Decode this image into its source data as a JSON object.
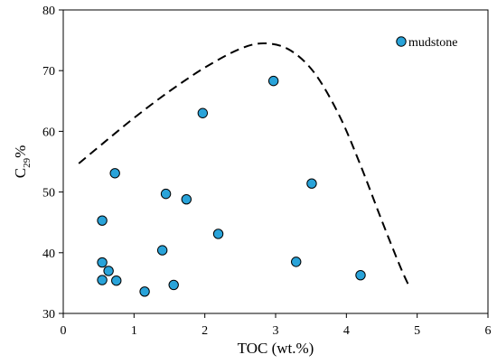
{
  "chart_data": {
    "type": "scatter",
    "xlabel": "TOC (wt.%)",
    "ylabel": {
      "base": "C",
      "subscript": "29",
      "suffix": "%"
    },
    "xlim": [
      0,
      6
    ],
    "ylim": [
      30,
      80
    ],
    "xticks": [
      0,
      1,
      2,
      3,
      4,
      5,
      6
    ],
    "yticks": [
      30,
      40,
      50,
      60,
      70,
      80
    ],
    "grid": false,
    "legend_position": "top-right",
    "series": [
      {
        "name": "mudstone",
        "marker_color": "#29a3d9",
        "points": [
          {
            "x": 0.55,
            "y": 45.3
          },
          {
            "x": 0.73,
            "y": 53.1
          },
          {
            "x": 0.55,
            "y": 38.4
          },
          {
            "x": 0.64,
            "y": 37.0
          },
          {
            "x": 0.55,
            "y": 35.5
          },
          {
            "x": 0.75,
            "y": 35.4
          },
          {
            "x": 1.15,
            "y": 33.6
          },
          {
            "x": 1.4,
            "y": 40.4
          },
          {
            "x": 1.45,
            "y": 49.7
          },
          {
            "x": 1.56,
            "y": 34.7
          },
          {
            "x": 1.74,
            "y": 48.8
          },
          {
            "x": 1.97,
            "y": 63.0
          },
          {
            "x": 2.19,
            "y": 43.1
          },
          {
            "x": 2.97,
            "y": 68.3
          },
          {
            "x": 3.29,
            "y": 38.5
          },
          {
            "x": 3.51,
            "y": 51.4
          },
          {
            "x": 4.2,
            "y": 36.3
          }
        ]
      }
    ],
    "trend_curve": {
      "style": "dashed",
      "points": [
        {
          "x": 0.22,
          "y": 54.7
        },
        {
          "x": 0.6,
          "y": 58.4
        },
        {
          "x": 1.0,
          "y": 62.2
        },
        {
          "x": 1.5,
          "y": 66.6
        },
        {
          "x": 2.0,
          "y": 70.5
        },
        {
          "x": 2.5,
          "y": 73.6
        },
        {
          "x": 2.85,
          "y": 74.5
        },
        {
          "x": 3.2,
          "y": 73.4
        },
        {
          "x": 3.55,
          "y": 69.6
        },
        {
          "x": 3.9,
          "y": 62.6
        },
        {
          "x": 4.2,
          "y": 54.4
        },
        {
          "x": 4.5,
          "y": 45.3
        },
        {
          "x": 4.75,
          "y": 38.0
        },
        {
          "x": 4.88,
          "y": 34.6
        }
      ]
    }
  }
}
